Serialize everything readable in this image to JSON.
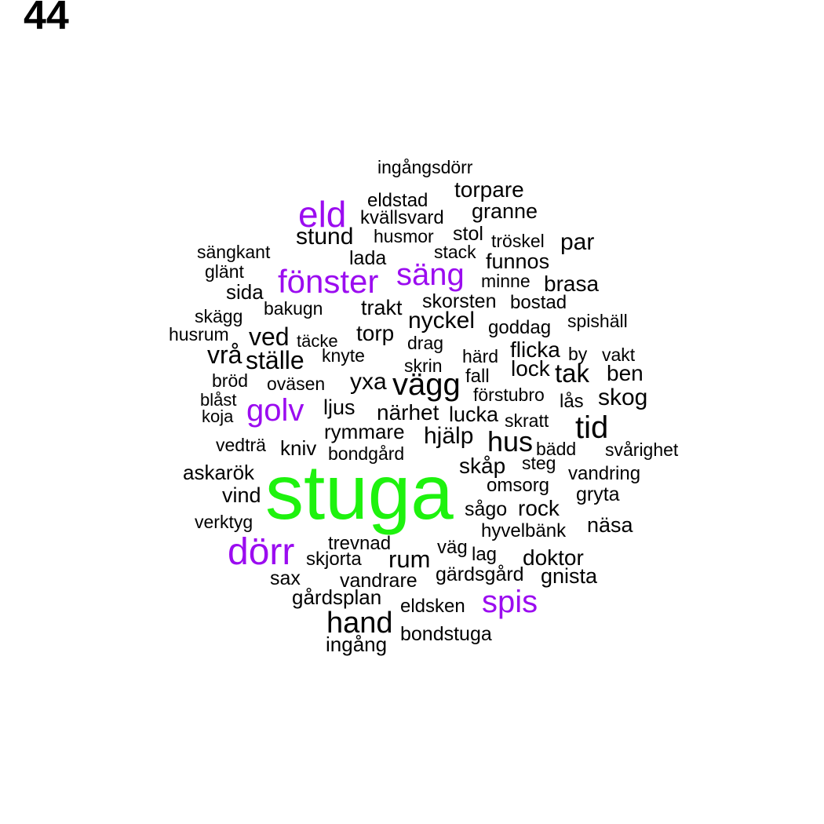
{
  "page_number": "44",
  "colors": {
    "top_word": "#1ef20e",
    "large_words": "#9b0cf0",
    "other_words": "#000000"
  },
  "words": {
    "stuga": "stuga",
    "eld": "eld",
    "fonster": "fönster",
    "sang": "säng",
    "golv": "golv",
    "dorr": "dörr",
    "spis": "spis",
    "ingangsdorr": "ingångsdörr",
    "torpare": "torpare",
    "eldstad": "eldstad",
    "granne": "granne",
    "kvallsvard": "kvällsvard",
    "stund": "stund",
    "husmor": "husmor",
    "stol": "stol",
    "troskel": "tröskel",
    "par": "par",
    "sangkant": "sängkant",
    "stack": "stack",
    "lada": "lada",
    "funnos": "funnos",
    "glant": "glänt",
    "minne": "minne",
    "brasa": "brasa",
    "sida": "sida",
    "skorsten": "skorsten",
    "bostad": "bostad",
    "bakugn": "bakugn",
    "trakt": "trakt",
    "skagg": "skägg",
    "nyckel": "nyckel",
    "spishall": "spishäll",
    "goddag": "goddag",
    "husrum": "husrum",
    "ved": "ved",
    "torp": "torp",
    "tacke": "täcke",
    "drag": "drag",
    "flicka": "flicka",
    "vra": "vrå",
    "stalle": "ställe",
    "knyte": "knyte",
    "hard": "härd",
    "by": "by",
    "vakt": "vakt",
    "skrin": "skrin",
    "lock": "lock",
    "tak": "tak",
    "ben": "ben",
    "brod": "bröd",
    "yxa": "yxa",
    "vagg": "vägg",
    "fall": "fall",
    "ovasen": "oväsen",
    "forstubro": "förstubro",
    "skog": "skog",
    "blast": "blåst",
    "las": "lås",
    "ljus": "ljus",
    "narhet": "närhet",
    "lucka": "lucka",
    "koja": "koja",
    "skratt": "skratt",
    "tid": "tid",
    "rymmare": "rymmare",
    "hjalp": "hjälp",
    "hus": "hus",
    "vedtra": "vedträ",
    "kniv": "kniv",
    "bondgard": "bondgård",
    "badd": "bädd",
    "svarighet": "svårighet",
    "skap": "skåp",
    "steg": "steg",
    "askarok": "askarök",
    "vandring": "vandring",
    "omsorg": "omsorg",
    "vind": "vind",
    "gryta": "gryta",
    "sago": "sågo",
    "rock": "rock",
    "verktyg": "verktyg",
    "nasa": "näsa",
    "hyvelbank": "hyvelbänk",
    "trevnad": "trevnad",
    "vag": "väg",
    "lag": "lag",
    "skjorta": "skjorta",
    "rum": "rum",
    "doktor": "doktor",
    "sax": "sax",
    "vandrare": "vandrare",
    "gardsgard": "gärdsgård",
    "gnista": "gnista",
    "gardsplan": "gårdsplan",
    "eldsken": "eldsken",
    "hand": "hand",
    "bondstuga": "bondstuga",
    "ingang": "ingång"
  }
}
